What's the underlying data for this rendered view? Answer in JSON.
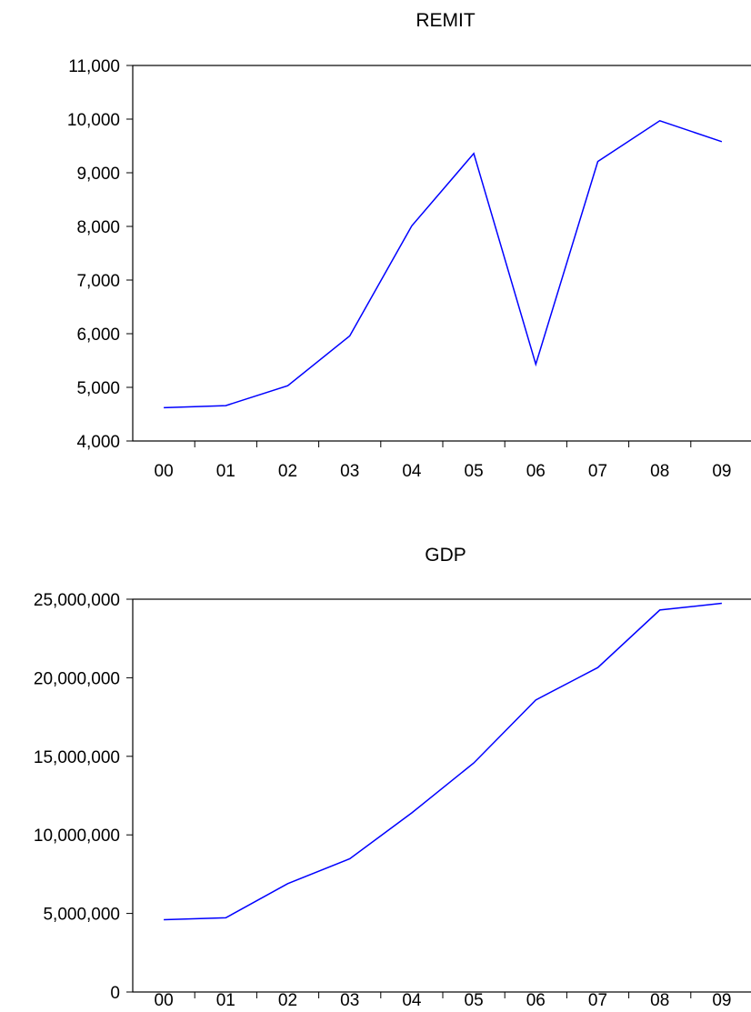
{
  "chart_data": [
    {
      "type": "line",
      "title": "REMIT",
      "xlabel": "",
      "ylabel": "",
      "categories": [
        "00",
        "01",
        "02",
        "03",
        "04",
        "05",
        "06",
        "07",
        "08",
        "09"
      ],
      "series": [
        {
          "name": "",
          "values": [
            4620,
            4660,
            5030,
            5960,
            8010,
            9360,
            5430,
            9210,
            9970,
            9580
          ]
        }
      ],
      "ylim": [
        4000,
        11000
      ],
      "yticks": [
        4000,
        5000,
        6000,
        7000,
        8000,
        9000,
        10000,
        11000
      ],
      "ytick_labels": [
        "4,000",
        "5,000",
        "6,000",
        "7,000",
        "8,000",
        "9,000",
        "10,000",
        "11,000"
      ],
      "grid": false,
      "line_color": "#0000ff"
    },
    {
      "type": "line",
      "title": "GDP",
      "xlabel": "",
      "ylabel": "",
      "categories": [
        "00",
        "01",
        "02",
        "03",
        "04",
        "05",
        "06",
        "07",
        "08",
        "09"
      ],
      "series": [
        {
          "name": "",
          "values": [
            4600000,
            4720000,
            6900000,
            8480000,
            11400000,
            14580000,
            18590000,
            20650000,
            24310000,
            24740000
          ]
        }
      ],
      "ylim": [
        0,
        25000000
      ],
      "yticks": [
        0,
        5000000,
        10000000,
        15000000,
        20000000,
        25000000
      ],
      "ytick_labels": [
        "0",
        "5,000,000",
        "10,000,000",
        "15,000,000",
        "20,000,000",
        "25,000,000"
      ],
      "grid": false,
      "line_color": "#0000ff"
    }
  ]
}
